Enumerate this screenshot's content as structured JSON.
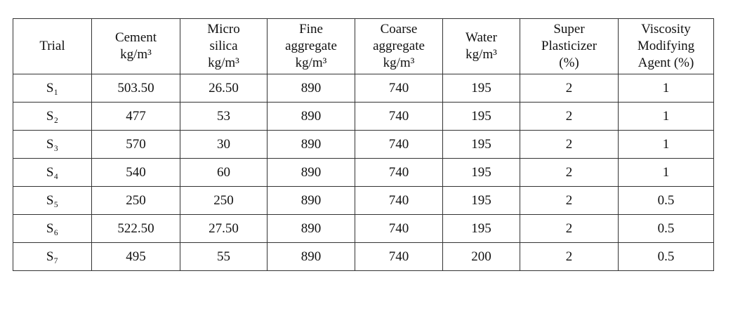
{
  "table": {
    "header": [
      [
        "Trial"
      ],
      [
        "Cement",
        "kg/m³"
      ],
      [
        "Micro",
        "silica",
        "kg/m³"
      ],
      [
        "Fine",
        "aggregate",
        "kg/m³"
      ],
      [
        "Coarse",
        "aggregate",
        "kg/m³"
      ],
      [
        "Water",
        "kg/m³"
      ],
      [
        "Super",
        "Plasticizer",
        "(%)"
      ],
      [
        "Viscosity",
        "Modifying",
        "Agent (%)"
      ]
    ],
    "rows": [
      [
        "S₁",
        "503.50",
        "26.50",
        "890",
        "740",
        "195",
        "2",
        "1"
      ],
      [
        "S₂",
        "477",
        "53",
        "890",
        "740",
        "195",
        "2",
        "1"
      ],
      [
        "S₃",
        "570",
        "30",
        "890",
        "740",
        "195",
        "2",
        "1"
      ],
      [
        "S₄",
        "540",
        "60",
        "890",
        "740",
        "195",
        "2",
        "1"
      ],
      [
        "S₅",
        "250",
        "250",
        "890",
        "740",
        "195",
        "2",
        "0.5"
      ],
      [
        "S₆",
        "522.50",
        "27.50",
        "890",
        "740",
        "195",
        "2",
        "0.5"
      ],
      [
        "S₇",
        "495",
        "55",
        "890",
        "740",
        "200",
        "2",
        "0.5"
      ]
    ]
  }
}
